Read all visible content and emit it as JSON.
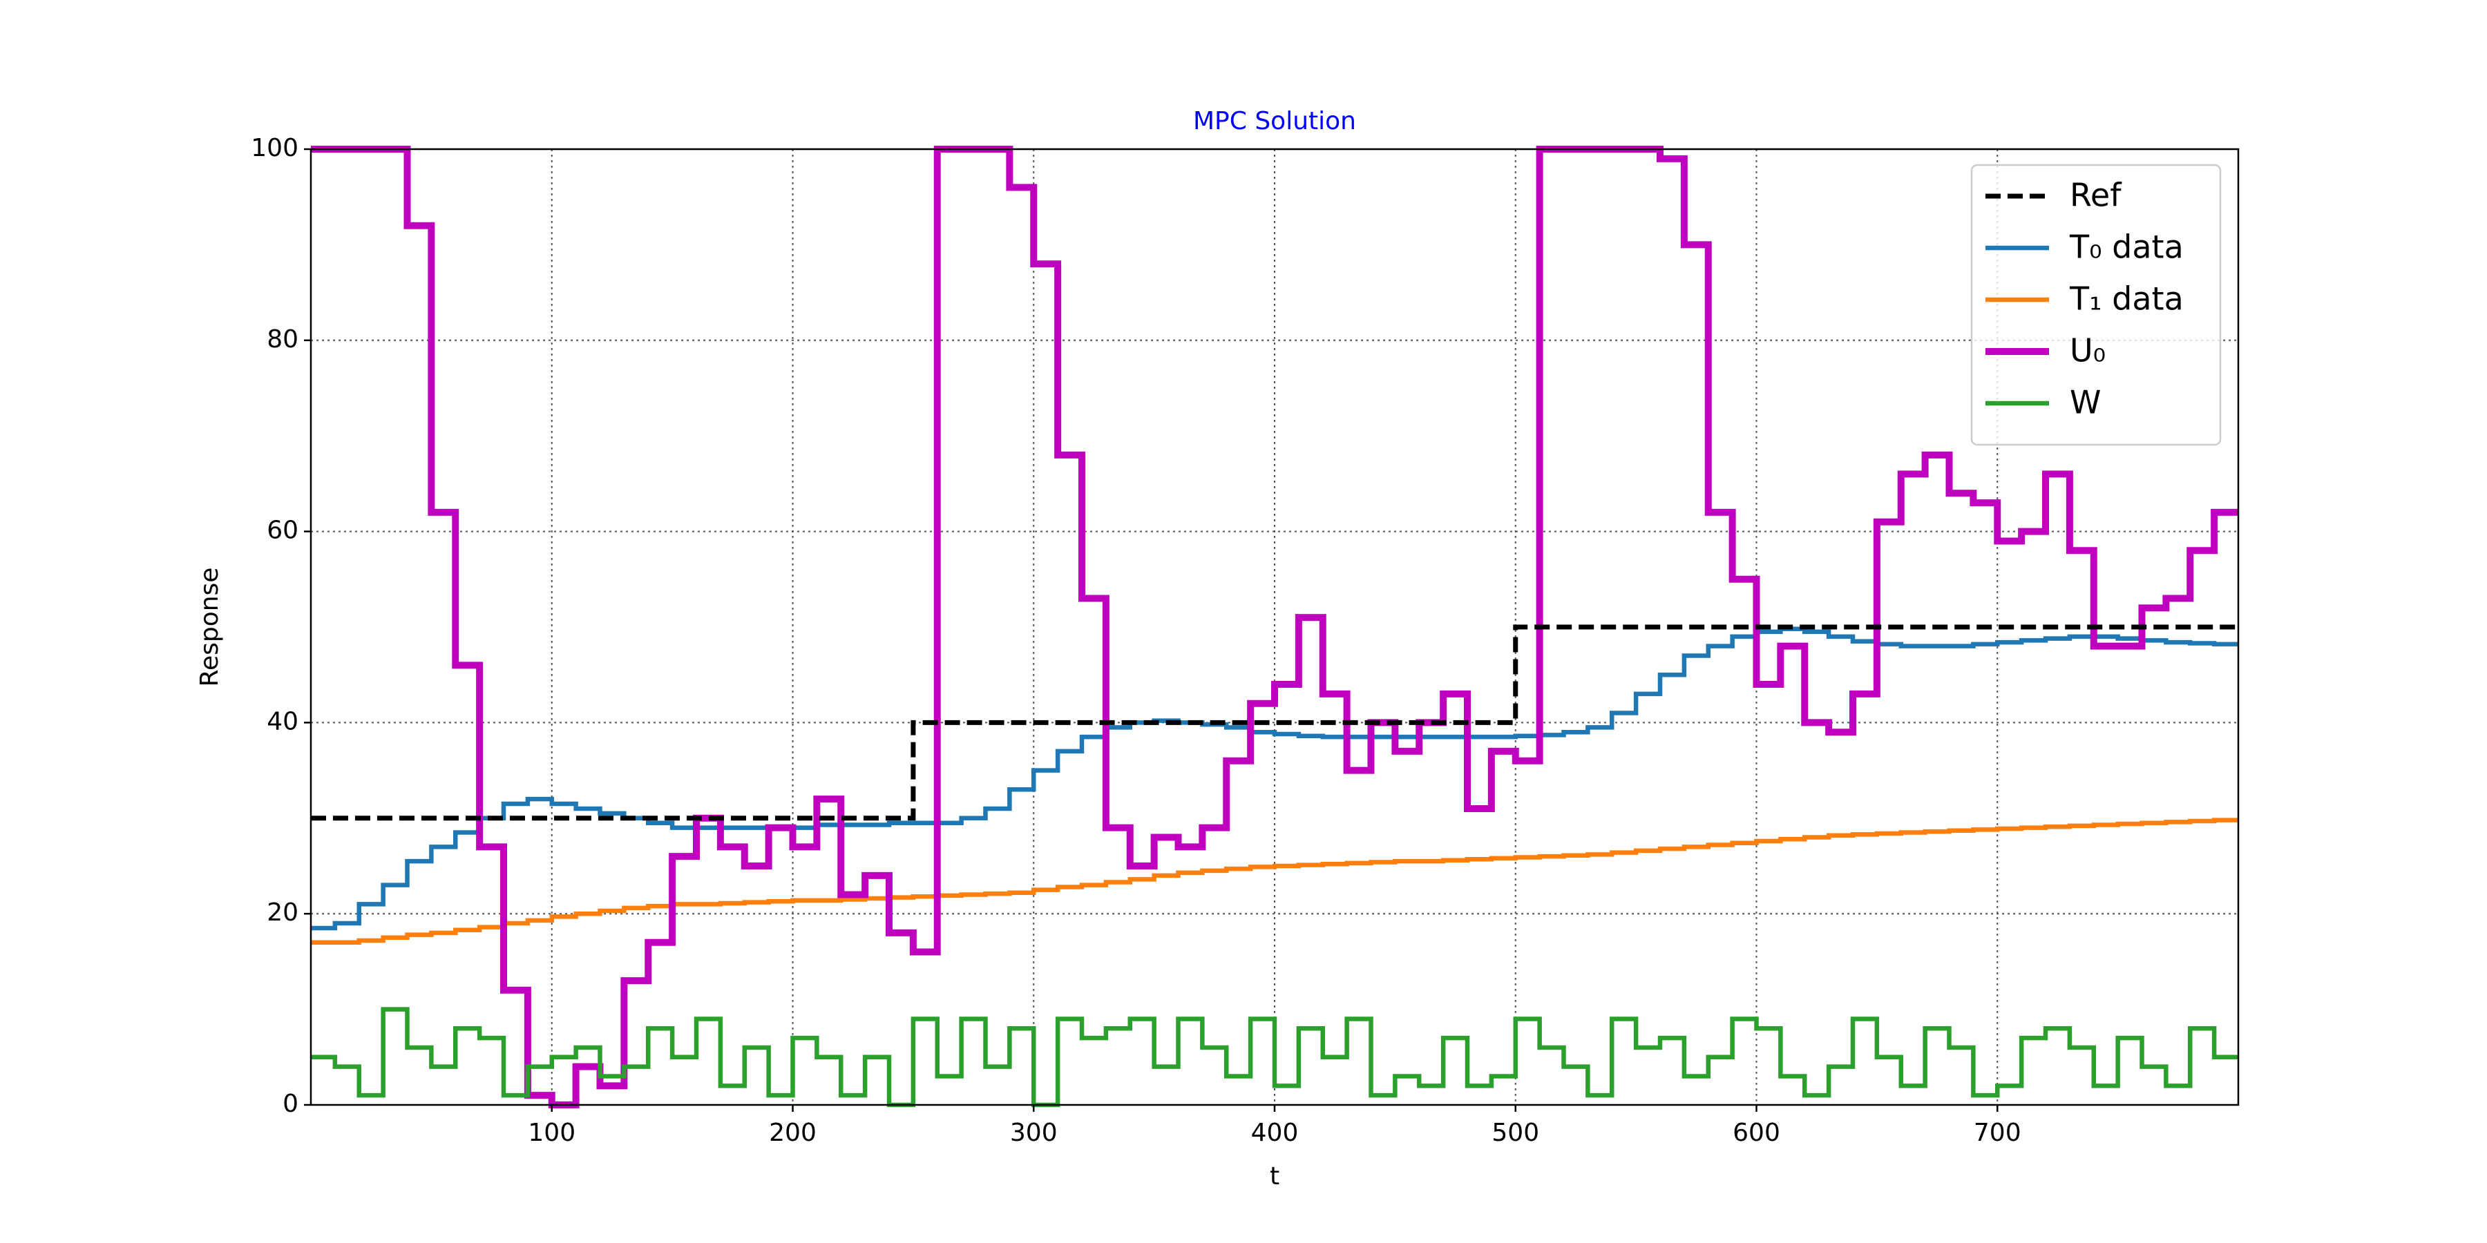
{
  "chart_data": {
    "type": "step",
    "title": "MPC Solution",
    "xlabel": "t",
    "ylabel": "Response",
    "xlim": [
      0,
      800
    ],
    "xticks": [
      100,
      200,
      300,
      400,
      500,
      600,
      700
    ],
    "ylim": [
      0,
      100
    ],
    "yticks": [
      0,
      20,
      40,
      60,
      80,
      100
    ],
    "grid": true,
    "legend": "upper right",
    "x": [
      0,
      10,
      20,
      30,
      40,
      50,
      60,
      70,
      80,
      90,
      100,
      110,
      120,
      130,
      140,
      150,
      160,
      170,
      180,
      190,
      200,
      210,
      220,
      230,
      240,
      250,
      260,
      270,
      280,
      290,
      300,
      310,
      320,
      330,
      340,
      350,
      360,
      370,
      380,
      390,
      400,
      410,
      420,
      430,
      440,
      450,
      460,
      470,
      480,
      490,
      500,
      510,
      520,
      530,
      540,
      550,
      560,
      570,
      580,
      590,
      600,
      610,
      620,
      630,
      640,
      650,
      660,
      670,
      680,
      690,
      700,
      710,
      720,
      730,
      740,
      750,
      760,
      770,
      780,
      790
    ],
    "series": [
      {
        "name": "Ref",
        "color": "#000000",
        "dash": true,
        "width": 7,
        "values": [
          30,
          30,
          30,
          30,
          30,
          30,
          30,
          30,
          30,
          30,
          30,
          30,
          30,
          30,
          30,
          30,
          30,
          30,
          30,
          30,
          30,
          30,
          30,
          30,
          30,
          40,
          40,
          40,
          40,
          40,
          40,
          40,
          40,
          40,
          40,
          40,
          40,
          40,
          40,
          40,
          40,
          40,
          40,
          40,
          40,
          40,
          40,
          40,
          40,
          40,
          50,
          50,
          50,
          50,
          50,
          50,
          50,
          50,
          50,
          50,
          50,
          50,
          50,
          50,
          50,
          50,
          50,
          50,
          50,
          50,
          50,
          50,
          50,
          50,
          50,
          50,
          50,
          50,
          50,
          50
        ]
      },
      {
        "name": "T₀ data",
        "color": "#1f77b4",
        "width": 6.5,
        "values": [
          18.5,
          19,
          21,
          23,
          25.5,
          27,
          28.5,
          30,
          31.5,
          32,
          31.5,
          31,
          30.5,
          30,
          29.5,
          29,
          29,
          29,
          29,
          29,
          29,
          29.3,
          29.3,
          29.3,
          29.5,
          29.5,
          29.5,
          30,
          31,
          33,
          35,
          37,
          38.5,
          39.5,
          40,
          40.2,
          40,
          39.8,
          39.5,
          39,
          38.8,
          38.6,
          38.5,
          38.5,
          38.5,
          38.5,
          38.5,
          38.5,
          38.5,
          38.5,
          38.6,
          38.7,
          39,
          39.5,
          41,
          43,
          45,
          47,
          48,
          49,
          49.5,
          49.8,
          49.5,
          49,
          48.5,
          48.2,
          48,
          48,
          48,
          48.2,
          48.4,
          48.6,
          48.8,
          49,
          49,
          48.8,
          48.6,
          48.4,
          48.3,
          48.2
        ]
      },
      {
        "name": "T₁ data",
        "color": "#ff7f0e",
        "width": 6.5,
        "values": [
          17,
          17,
          17.2,
          17.5,
          17.8,
          18,
          18.3,
          18.6,
          19,
          19.3,
          19.7,
          20,
          20.3,
          20.6,
          20.8,
          21,
          21,
          21.1,
          21.2,
          21.3,
          21.4,
          21.4,
          21.5,
          21.6,
          21.7,
          21.8,
          21.9,
          22,
          22.1,
          22.2,
          22.5,
          22.8,
          23,
          23.3,
          23.6,
          24,
          24.3,
          24.5,
          24.7,
          24.9,
          25,
          25.1,
          25.2,
          25.3,
          25.4,
          25.5,
          25.5,
          25.6,
          25.7,
          25.8,
          25.9,
          26,
          26.1,
          26.2,
          26.4,
          26.6,
          26.8,
          27,
          27.2,
          27.4,
          27.6,
          27.8,
          28,
          28.2,
          28.3,
          28.4,
          28.5,
          28.6,
          28.7,
          28.8,
          28.9,
          29,
          29.1,
          29.2,
          29.3,
          29.4,
          29.5,
          29.6,
          29.7,
          29.8
        ]
      },
      {
        "name": "U₀",
        "color": "#bf00bf",
        "width": 10,
        "values": [
          100,
          100,
          100,
          100,
          92,
          62,
          46,
          27,
          12,
          1,
          0,
          4,
          2,
          13,
          17,
          26,
          30,
          27,
          25,
          29,
          27,
          32,
          22,
          24,
          18,
          16,
          100,
          100,
          100,
          96,
          88,
          68,
          53,
          29,
          25,
          28,
          27,
          29,
          36,
          42,
          44,
          51,
          43,
          35,
          40,
          37,
          40,
          43,
          31,
          37,
          36,
          100,
          100,
          100,
          100,
          100,
          99,
          90,
          62,
          55,
          44,
          48,
          40,
          39,
          43,
          61,
          66,
          68,
          64,
          63,
          59,
          60,
          66,
          58,
          48,
          48,
          52,
          53,
          58,
          62
        ]
      },
      {
        "name": "W",
        "color": "#2ca02c",
        "width": 6.5,
        "values": [
          5,
          4,
          1,
          10,
          6,
          4,
          8,
          7,
          1,
          4,
          5,
          6,
          3,
          4,
          8,
          5,
          9,
          2,
          6,
          1,
          7,
          5,
          1,
          5,
          0,
          9,
          3,
          9,
          4,
          8,
          0,
          9,
          7,
          8,
          9,
          4,
          9,
          6,
          3,
          9,
          2,
          8,
          5,
          9,
          1,
          3,
          2,
          7,
          2,
          3,
          9,
          6,
          4,
          1,
          9,
          6,
          7,
          3,
          5,
          9,
          8,
          3,
          1,
          4,
          9,
          5,
          2,
          8,
          6,
          1,
          2,
          7,
          8,
          6,
          2,
          7,
          4,
          2,
          8,
          5
        ]
      }
    ]
  }
}
